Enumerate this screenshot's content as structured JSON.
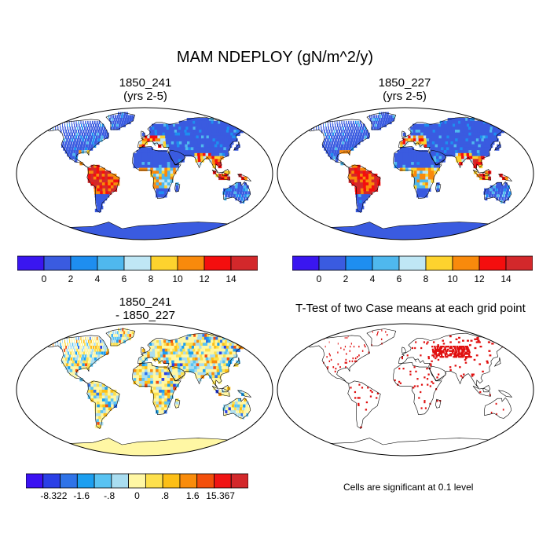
{
  "figure": {
    "title": "MAM NDEPLOY (gN/m^2/y)",
    "panels": [
      {
        "id": "case1",
        "title_line1": "1850_241",
        "title_line2": "(yrs 2-5)",
        "style": "abs"
      },
      {
        "id": "case2",
        "title_line1": "1850_227",
        "title_line2": "(yrs 2-5)",
        "style": "abs"
      },
      {
        "id": "diff",
        "title_line1": "1850_241",
        "title_line2": "- 1850_227",
        "style": "diff"
      },
      {
        "id": "ttest",
        "title_line1": "T-Test of two Case means at each grid point",
        "title_line2": "",
        "style": "ttest"
      }
    ],
    "abs_colorbar": {
      "colors": [
        "#3a16f0",
        "#3a5be0",
        "#1e8ef0",
        "#4fb8ee",
        "#bfe7f5",
        "#fdd32e",
        "#f98a0c",
        "#f40e0e",
        "#d3282b"
      ],
      "labels": [
        "0",
        "2",
        "4",
        "6",
        "8",
        "10",
        "12",
        "14"
      ]
    },
    "diff_colorbar": {
      "colors": [
        "#3b12f2",
        "#2a3fe6",
        "#2f73e8",
        "#1c9ff0",
        "#59c3f2",
        "#a9ddf0",
        "#fff7a4",
        "#fde04d",
        "#fcbf17",
        "#f98c0b",
        "#f34f0b",
        "#f01414",
        "#d3282b"
      ],
      "labels": [
        "-8.322",
        "-1.6",
        "-.8",
        "0",
        ".8",
        "1.6",
        "15.367"
      ]
    },
    "significance_note": "Cells are significant at 0.1 level"
  }
}
